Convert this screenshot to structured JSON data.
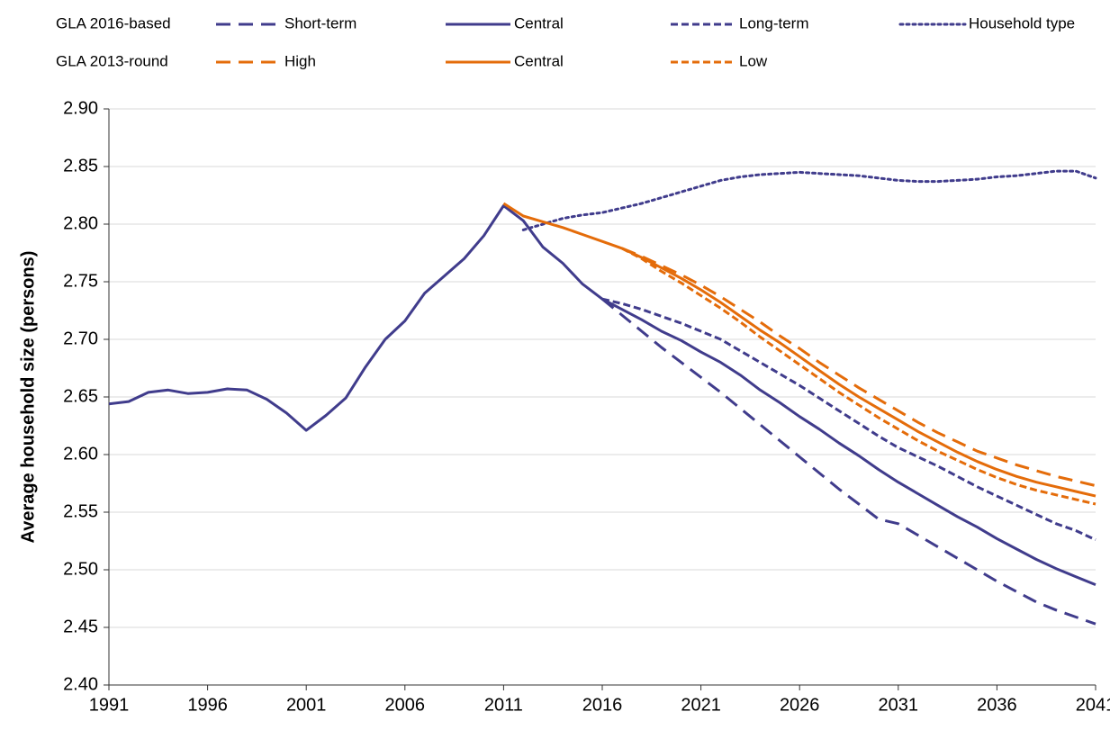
{
  "chart_data": {
    "type": "line",
    "y_label": "Average household size (persons)",
    "x": [
      1991,
      1992,
      1993,
      1994,
      1995,
      1996,
      1997,
      1998,
      1999,
      2000,
      2001,
      2002,
      2003,
      2004,
      2005,
      2006,
      2007,
      2008,
      2009,
      2010,
      2011,
      2012,
      2013,
      2014,
      2015,
      2016,
      2017,
      2018,
      2019,
      2020,
      2021,
      2022,
      2023,
      2024,
      2025,
      2026,
      2027,
      2028,
      2029,
      2030,
      2031,
      2032,
      2033,
      2034,
      2035,
      2036,
      2037,
      2038,
      2039,
      2040,
      2041
    ],
    "xlim": [
      1991,
      2041
    ],
    "xticks": [
      1991,
      1996,
      2001,
      2006,
      2011,
      2016,
      2021,
      2026,
      2031,
      2036,
      2041
    ],
    "ylim": [
      2.4,
      2.9
    ],
    "yticks": [
      {
        "value": 2.4,
        "label": "2.40"
      },
      2.45,
      {
        "value": 2.5,
        "label": "2.50"
      },
      2.55,
      {
        "value": 2.6,
        "label": "2.60"
      },
      2.65,
      {
        "value": 2.7,
        "label": "2.70"
      },
      2.75,
      {
        "value": 2.8,
        "label": "2.80"
      },
      2.85,
      {
        "value": 2.9,
        "label": "2.90"
      }
    ],
    "grid": true,
    "groups": [
      {
        "name": "GLA 2016-based",
        "series": [
          {
            "name": "Short-term",
            "color": "#403c8c",
            "dash": "long",
            "values": [
              null,
              null,
              null,
              null,
              null,
              null,
              null,
              null,
              null,
              null,
              null,
              null,
              null,
              null,
              null,
              null,
              null,
              null,
              null,
              null,
              null,
              null,
              null,
              null,
              null,
              2.735,
              2.721,
              2.707,
              2.693,
              2.68,
              2.667,
              2.654,
              2.64,
              2.626,
              2.612,
              2.598,
              2.584,
              2.57,
              2.557,
              2.544,
              2.54,
              2.53,
              2.52,
              2.51,
              2.5,
              2.49,
              2.481,
              2.472,
              2.465,
              2.459,
              2.453
            ]
          },
          {
            "name": "Central",
            "color": "#403c8c",
            "dash": "solid",
            "values": [
              2.644,
              2.646,
              2.654,
              2.656,
              2.653,
              2.654,
              2.657,
              2.656,
              2.648,
              2.636,
              2.621,
              2.634,
              2.649,
              2.676,
              2.7,
              2.716,
              2.74,
              2.755,
              2.77,
              2.79,
              2.816,
              2.803,
              2.78,
              2.766,
              2.748,
              2.735,
              2.726,
              2.717,
              2.707,
              2.699,
              2.689,
              2.68,
              2.669,
              2.656,
              2.645,
              2.633,
              2.622,
              2.61,
              2.599,
              2.587,
              2.576,
              2.566,
              2.556,
              2.546,
              2.537,
              2.527,
              2.518,
              2.509,
              2.501,
              2.494,
              2.487
            ]
          },
          {
            "name": "Long-term",
            "color": "#403c8c",
            "dash": "short",
            "values": [
              null,
              null,
              null,
              null,
              null,
              null,
              null,
              null,
              null,
              null,
              null,
              null,
              null,
              null,
              null,
              null,
              null,
              null,
              null,
              null,
              null,
              null,
              null,
              null,
              null,
              2.735,
              2.731,
              2.726,
              2.72,
              2.714,
              2.707,
              2.7,
              2.69,
              2.68,
              2.67,
              2.66,
              2.649,
              2.638,
              2.627,
              2.616,
              2.606,
              2.598,
              2.59,
              2.581,
              2.572,
              2.564,
              2.556,
              2.548,
              2.54,
              2.534,
              2.526
            ]
          },
          {
            "name": "Household type",
            "color": "#403c8c",
            "dash": "dot",
            "values": [
              null,
              null,
              null,
              null,
              null,
              null,
              null,
              null,
              null,
              null,
              null,
              null,
              null,
              null,
              null,
              null,
              null,
              null,
              null,
              null,
              null,
              2.795,
              2.8,
              2.805,
              2.808,
              2.81,
              2.814,
              2.818,
              2.823,
              2.828,
              2.833,
              2.838,
              2.841,
              2.843,
              2.844,
              2.845,
              2.844,
              2.843,
              2.842,
              2.84,
              2.838,
              2.837,
              2.837,
              2.838,
              2.839,
              2.841,
              2.842,
              2.844,
              2.846,
              2.846,
              2.84
            ]
          }
        ]
      },
      {
        "name": "GLA 2013-round",
        "series": [
          {
            "name": "High",
            "color": "#e46c0a",
            "dash": "long",
            "values": [
              null,
              null,
              null,
              null,
              null,
              null,
              null,
              null,
              null,
              null,
              null,
              null,
              null,
              null,
              null,
              null,
              null,
              null,
              null,
              null,
              null,
              null,
              null,
              null,
              null,
              null,
              2.779,
              2.772,
              2.764,
              2.756,
              2.747,
              2.737,
              2.726,
              2.715,
              2.703,
              2.692,
              2.68,
              2.669,
              2.658,
              2.648,
              2.638,
              2.628,
              2.619,
              2.611,
              2.603,
              2.597,
              2.591,
              2.586,
              2.581,
              2.577,
              2.573
            ]
          },
          {
            "name": "Central",
            "color": "#e46c0a",
            "dash": "solid",
            "values": [
              null,
              null,
              null,
              null,
              null,
              null,
              null,
              null,
              null,
              null,
              null,
              null,
              null,
              null,
              null,
              null,
              null,
              null,
              null,
              null,
              2.818,
              2.807,
              2.802,
              2.797,
              2.791,
              2.785,
              2.779,
              2.771,
              2.762,
              2.753,
              2.743,
              2.732,
              2.72,
              2.708,
              2.697,
              2.685,
              2.673,
              2.661,
              2.65,
              2.64,
              2.63,
              2.62,
              2.611,
              2.602,
              2.594,
              2.587,
              2.581,
              2.576,
              2.572,
              2.568,
              2.564
            ]
          },
          {
            "name": "Low",
            "color": "#e46c0a",
            "dash": "short",
            "values": [
              null,
              null,
              null,
              null,
              null,
              null,
              null,
              null,
              null,
              null,
              null,
              null,
              null,
              null,
              null,
              null,
              null,
              null,
              null,
              null,
              null,
              null,
              null,
              null,
              null,
              null,
              2.779,
              2.77,
              2.759,
              2.749,
              2.738,
              2.727,
              2.715,
              2.702,
              2.69,
              2.678,
              2.666,
              2.654,
              2.643,
              2.632,
              2.622,
              2.612,
              2.603,
              2.595,
              2.587,
              2.58,
              2.574,
              2.569,
              2.565,
              2.561,
              2.557
            ]
          }
        ]
      }
    ]
  }
}
